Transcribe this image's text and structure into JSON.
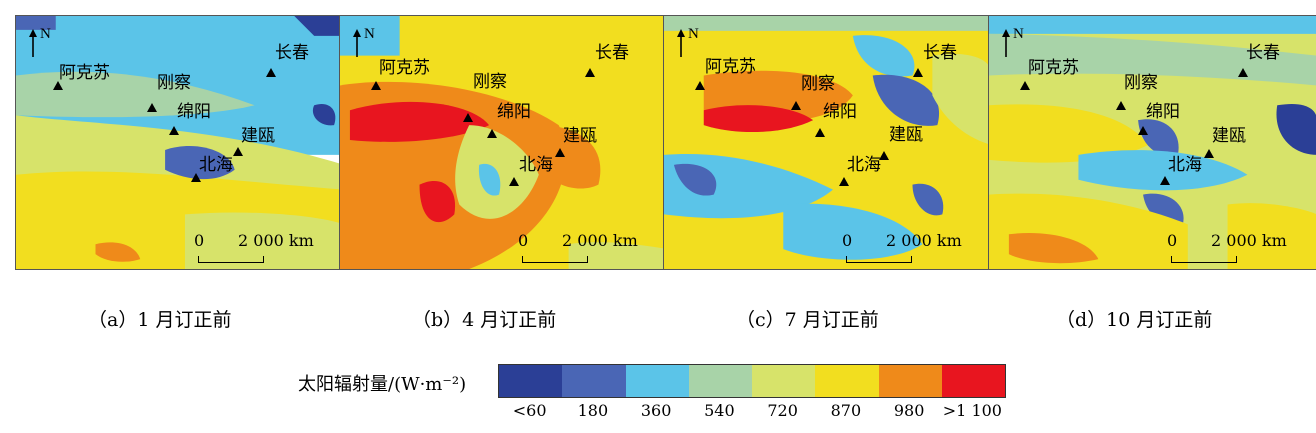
{
  "panels": [
    {
      "id": "a",
      "caption": "（a）1 月订正前",
      "north_label": "N",
      "scale_zero": "0",
      "scale_distance": "2 000 km",
      "stations": {
        "aksu": "阿克苏",
        "gangcha": "刚察",
        "mianyang": "绵阳",
        "beihai": "北海",
        "jianou": "建瓯",
        "changchun": "长春"
      }
    },
    {
      "id": "b",
      "caption": "（b）4 月订正前",
      "north_label": "N",
      "scale_zero": "0",
      "scale_distance": "2 000 km",
      "stations": {
        "aksu": "阿克苏",
        "gangcha": "刚察",
        "mianyang": "绵阳",
        "beihai": "北海",
        "jianou": "建瓯",
        "changchun": "长春"
      }
    },
    {
      "id": "c",
      "caption": "（c）7 月订正前",
      "north_label": "N",
      "scale_zero": "0",
      "scale_distance": "2 000 km",
      "stations": {
        "aksu": "阿克苏",
        "gangcha": "刚察",
        "mianyang": "绵阳",
        "beihai": "北海",
        "jianou": "建瓯",
        "changchun": "长春"
      }
    },
    {
      "id": "d",
      "caption": "（d）10 月订正前",
      "north_label": "N",
      "scale_zero": "0",
      "scale_distance": "2 000 km",
      "stations": {
        "aksu": "阿克苏",
        "gangcha": "刚察",
        "mianyang": "绵阳",
        "beihai": "北海",
        "jianou": "建瓯",
        "changchun": "长春"
      }
    }
  ],
  "legend": {
    "title": "太阳辐射量/(W·m⁻²)",
    "colors": [
      "#2b3f96",
      "#4a66b5",
      "#5bc4e8",
      "#a8d3a8",
      "#d7e36a",
      "#f2de1f",
      "#ef8a1a",
      "#e8151f"
    ],
    "labels": [
      "<60",
      "180",
      "360",
      "540",
      "720",
      "870",
      "980",
      ">1 100"
    ]
  }
}
